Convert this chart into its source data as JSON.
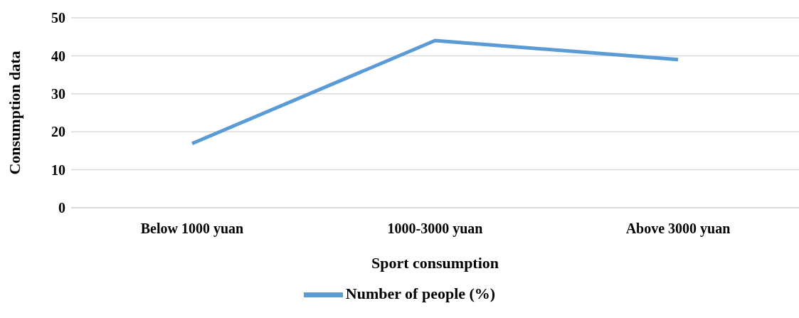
{
  "chart_data": {
    "type": "line",
    "xlabel": "Sport consumption",
    "ylabel": "Consumption data",
    "categories": [
      "Below 1000 yuan",
      "1000-3000 yuan",
      "Above 3000 yuan"
    ],
    "series": [
      {
        "name": "Number of people (%)",
        "color": "#5b9bd5",
        "values": [
          16.9,
          44,
          39
        ]
      }
    ],
    "ylim": [
      0,
      50
    ],
    "yticks": [
      0,
      10,
      20,
      30,
      40,
      50
    ],
    "grid": "y",
    "legend": "bottom",
    "marker": "none",
    "line_style": "solid"
  }
}
